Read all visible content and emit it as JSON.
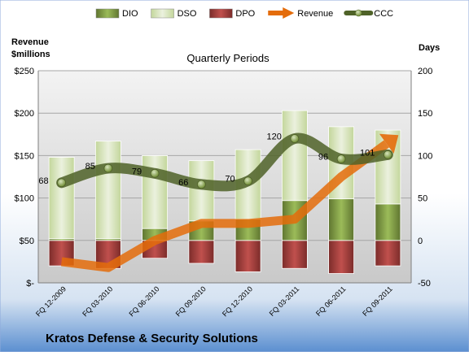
{
  "chart_data": {
    "type": "bar",
    "title": "Quarterly Periods",
    "company": "Kratos Defense & Security Solutions",
    "left_axis_label": [
      "Revenue",
      "$millions"
    ],
    "right_axis_label": "Days",
    "legend_position": "top",
    "grid": true,
    "left_ylim": [
      0,
      250
    ],
    "left_ticks": [
      0,
      50,
      100,
      150,
      200,
      250
    ],
    "left_tick_labels": [
      "$-",
      "$50",
      "$100",
      "$150",
      "$200",
      "$250"
    ],
    "right_ylim": [
      -50,
      200
    ],
    "right_ticks": [
      -50,
      0,
      50,
      100,
      150,
      200
    ],
    "right_tick_labels": [
      "-50",
      "0",
      "50",
      "100",
      "150",
      "200"
    ],
    "categories": [
      "FQ 12-2009",
      "FQ 03-2010",
      "FQ 06-2010",
      "FQ 09-2010",
      "FQ 12-2010",
      "FQ 03-2011",
      "FQ 06-2011",
      "FQ 09-2011"
    ],
    "series": [
      {
        "name": "DIO",
        "axis": "right",
        "kind": "stacked-bar",
        "color": "#77933c",
        "values": [
          2,
          2,
          14,
          23,
          25,
          47,
          49,
          43
        ]
      },
      {
        "name": "DSO",
        "axis": "right",
        "kind": "stacked-bar",
        "color": "#d7e4bd",
        "values": [
          96,
          115,
          86,
          71,
          82,
          106,
          85,
          87
        ]
      },
      {
        "name": "DPO",
        "axis": "right",
        "kind": "negative-bar",
        "color": "#953735",
        "values": [
          -30,
          -33,
          -21,
          -27,
          -37,
          -33,
          -39,
          -30
        ]
      },
      {
        "name": "Revenue",
        "axis": "left",
        "kind": "arrow-line",
        "color": "#e46c0a",
        "values": [
          25,
          18,
          50,
          70,
          70,
          75,
          125,
          165
        ]
      },
      {
        "name": "CCC",
        "axis": "right",
        "kind": "line-markers",
        "color": "#4f6228",
        "values": [
          68,
          85,
          79,
          66,
          70,
          120,
          96,
          101
        ]
      }
    ],
    "ccc_labels": [
      "68",
      "85",
      "79",
      "66",
      "70",
      "120",
      "96",
      "101"
    ]
  }
}
